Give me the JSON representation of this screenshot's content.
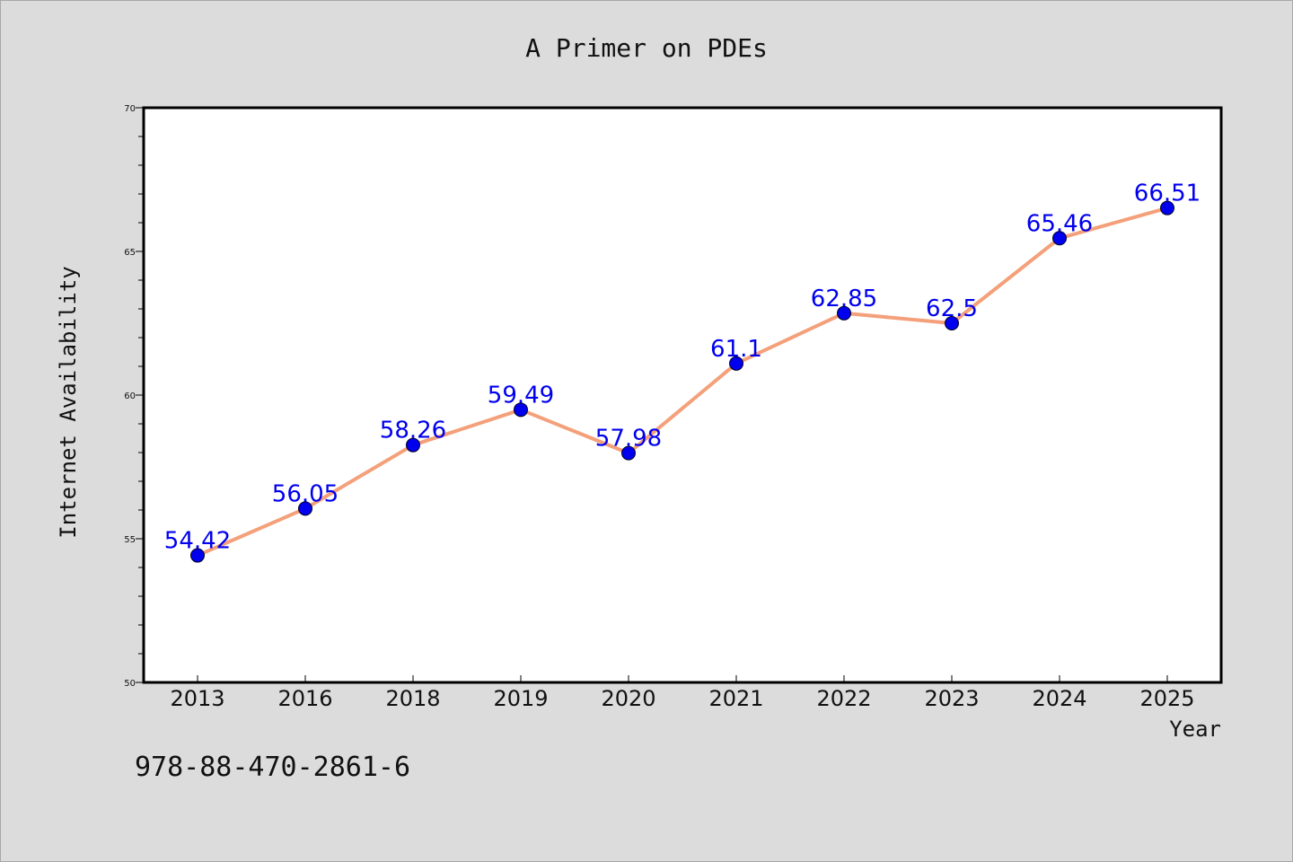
{
  "page": {
    "isbn": "978-88-470-2861-6"
  },
  "colors": {
    "background": "#dcdcdc",
    "plot_area": "#ffffff",
    "line": "#f4a07a",
    "marker": "#0000ee",
    "data_label": "#0000ee"
  },
  "chart_data": {
    "type": "line",
    "title": "A Primer on PDEs",
    "xlabel": "Year",
    "ylabel": "Internet Availability",
    "categories": [
      "2013",
      "2016",
      "2018",
      "2019",
      "2020",
      "2021",
      "2022",
      "2023",
      "2024",
      "2025"
    ],
    "series": [
      {
        "values": [
          54.42,
          56.05,
          58.26,
          59.49,
          57.98,
          61.1,
          62.85,
          62.5,
          65.46,
          66.51
        ],
        "data_labels": [
          "54.42",
          "56.05",
          "58.26",
          "59.49",
          "57.98",
          "61.1",
          "62.85",
          "62.5",
          "65.46",
          "66.51"
        ]
      }
    ],
    "ylim": [
      50,
      70
    ],
    "yticks": [
      "50",
      "55",
      "60",
      "65",
      "70"
    ],
    "grid": false,
    "legend": "none"
  }
}
